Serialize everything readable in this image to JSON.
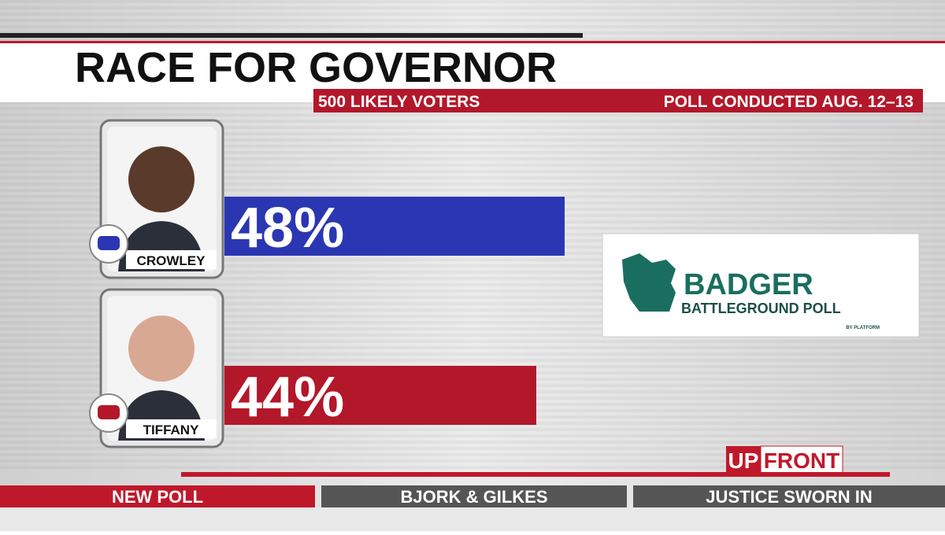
{
  "chart_data": {
    "type": "bar",
    "orientation": "horizontal",
    "title": "RACE FOR GOVERNOR",
    "subtitle_left": "500 LIKELY VOTERS",
    "subtitle_right": "POLL CONDUCTED AUG. 12–13",
    "categories": [
      "CROWLEY",
      "TIFFANY"
    ],
    "values": [
      48,
      44
    ],
    "value_labels": [
      "48%",
      "44%"
    ],
    "colors": [
      "#2b36b2",
      "#b3172a"
    ]
  },
  "logo": {
    "name": "BADGER",
    "subname": "BATTLEGROUND POLL",
    "byline": "BY PLATFORM"
  },
  "brand": {
    "first": "UP",
    "second": "FRONT"
  },
  "ticker": [
    "NEW POLL",
    "BJORK & GILKES",
    "JUSTICE SWORN IN"
  ]
}
